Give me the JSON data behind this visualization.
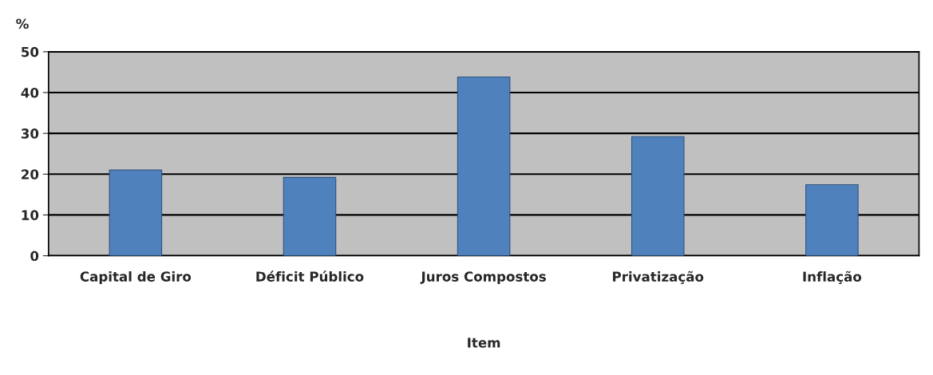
{
  "chart_data": {
    "type": "bar",
    "xlabel": "Item",
    "ylabel": "%",
    "categories": [
      "Capital de Giro",
      "Déficit Público",
      "Juros Compostos",
      "Privatização",
      "Inflação"
    ],
    "values": [
      21,
      19.2,
      43.8,
      29.2,
      17.4
    ],
    "color": "#4f81bd",
    "ylim": [
      0,
      50
    ],
    "yticks": [
      0,
      10,
      20,
      30,
      40,
      50
    ],
    "grid": "y",
    "legend": false
  }
}
